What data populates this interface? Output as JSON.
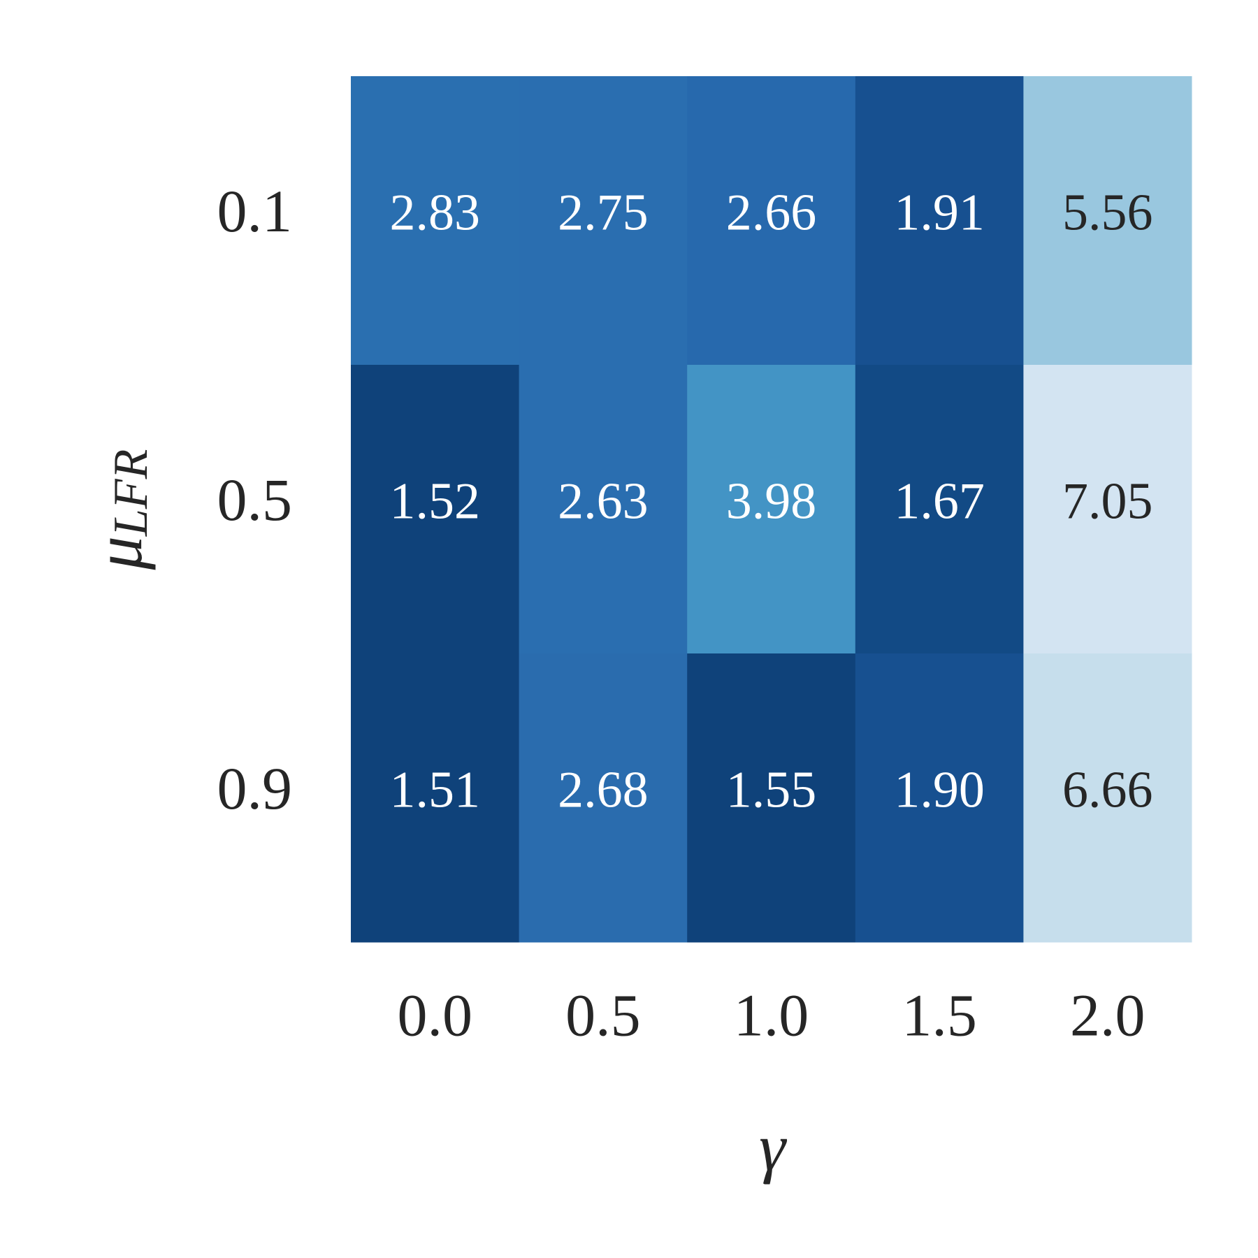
{
  "chart_data": {
    "type": "heatmap",
    "xlabel": "γ",
    "ylabel": "μ",
    "ylabel_subscript": "LFR",
    "x_categories": [
      "0.0",
      "0.5",
      "1.0",
      "1.5",
      "2.0"
    ],
    "y_categories": [
      "0.1",
      "0.5",
      "0.9"
    ],
    "values": [
      [
        2.83,
        2.75,
        2.66,
        1.91,
        5.56
      ],
      [
        1.52,
        2.63,
        3.98,
        1.67,
        7.05
      ],
      [
        1.51,
        2.68,
        1.55,
        1.9,
        6.66
      ]
    ],
    "value_labels": [
      [
        "2.83",
        "2.75",
        "2.66",
        "1.91",
        "5.56"
      ],
      [
        "1.52",
        "2.63",
        "3.98",
        "1.67",
        "7.05"
      ],
      [
        "1.51",
        "2.68",
        "1.55",
        "1.90",
        "6.66"
      ]
    ],
    "colors": [
      [
        "#2a6fb0",
        "#2a6eb0",
        "#2769ad",
        "#175090",
        "#99c7df"
      ],
      [
        "#0f427a",
        "#2a6eb0",
        "#4394c5",
        "#124a85",
        "#d3e4f2"
      ],
      [
        "#0f427a",
        "#2a6cae",
        "#0f427a",
        "#175090",
        "#c6deec"
      ]
    ]
  }
}
